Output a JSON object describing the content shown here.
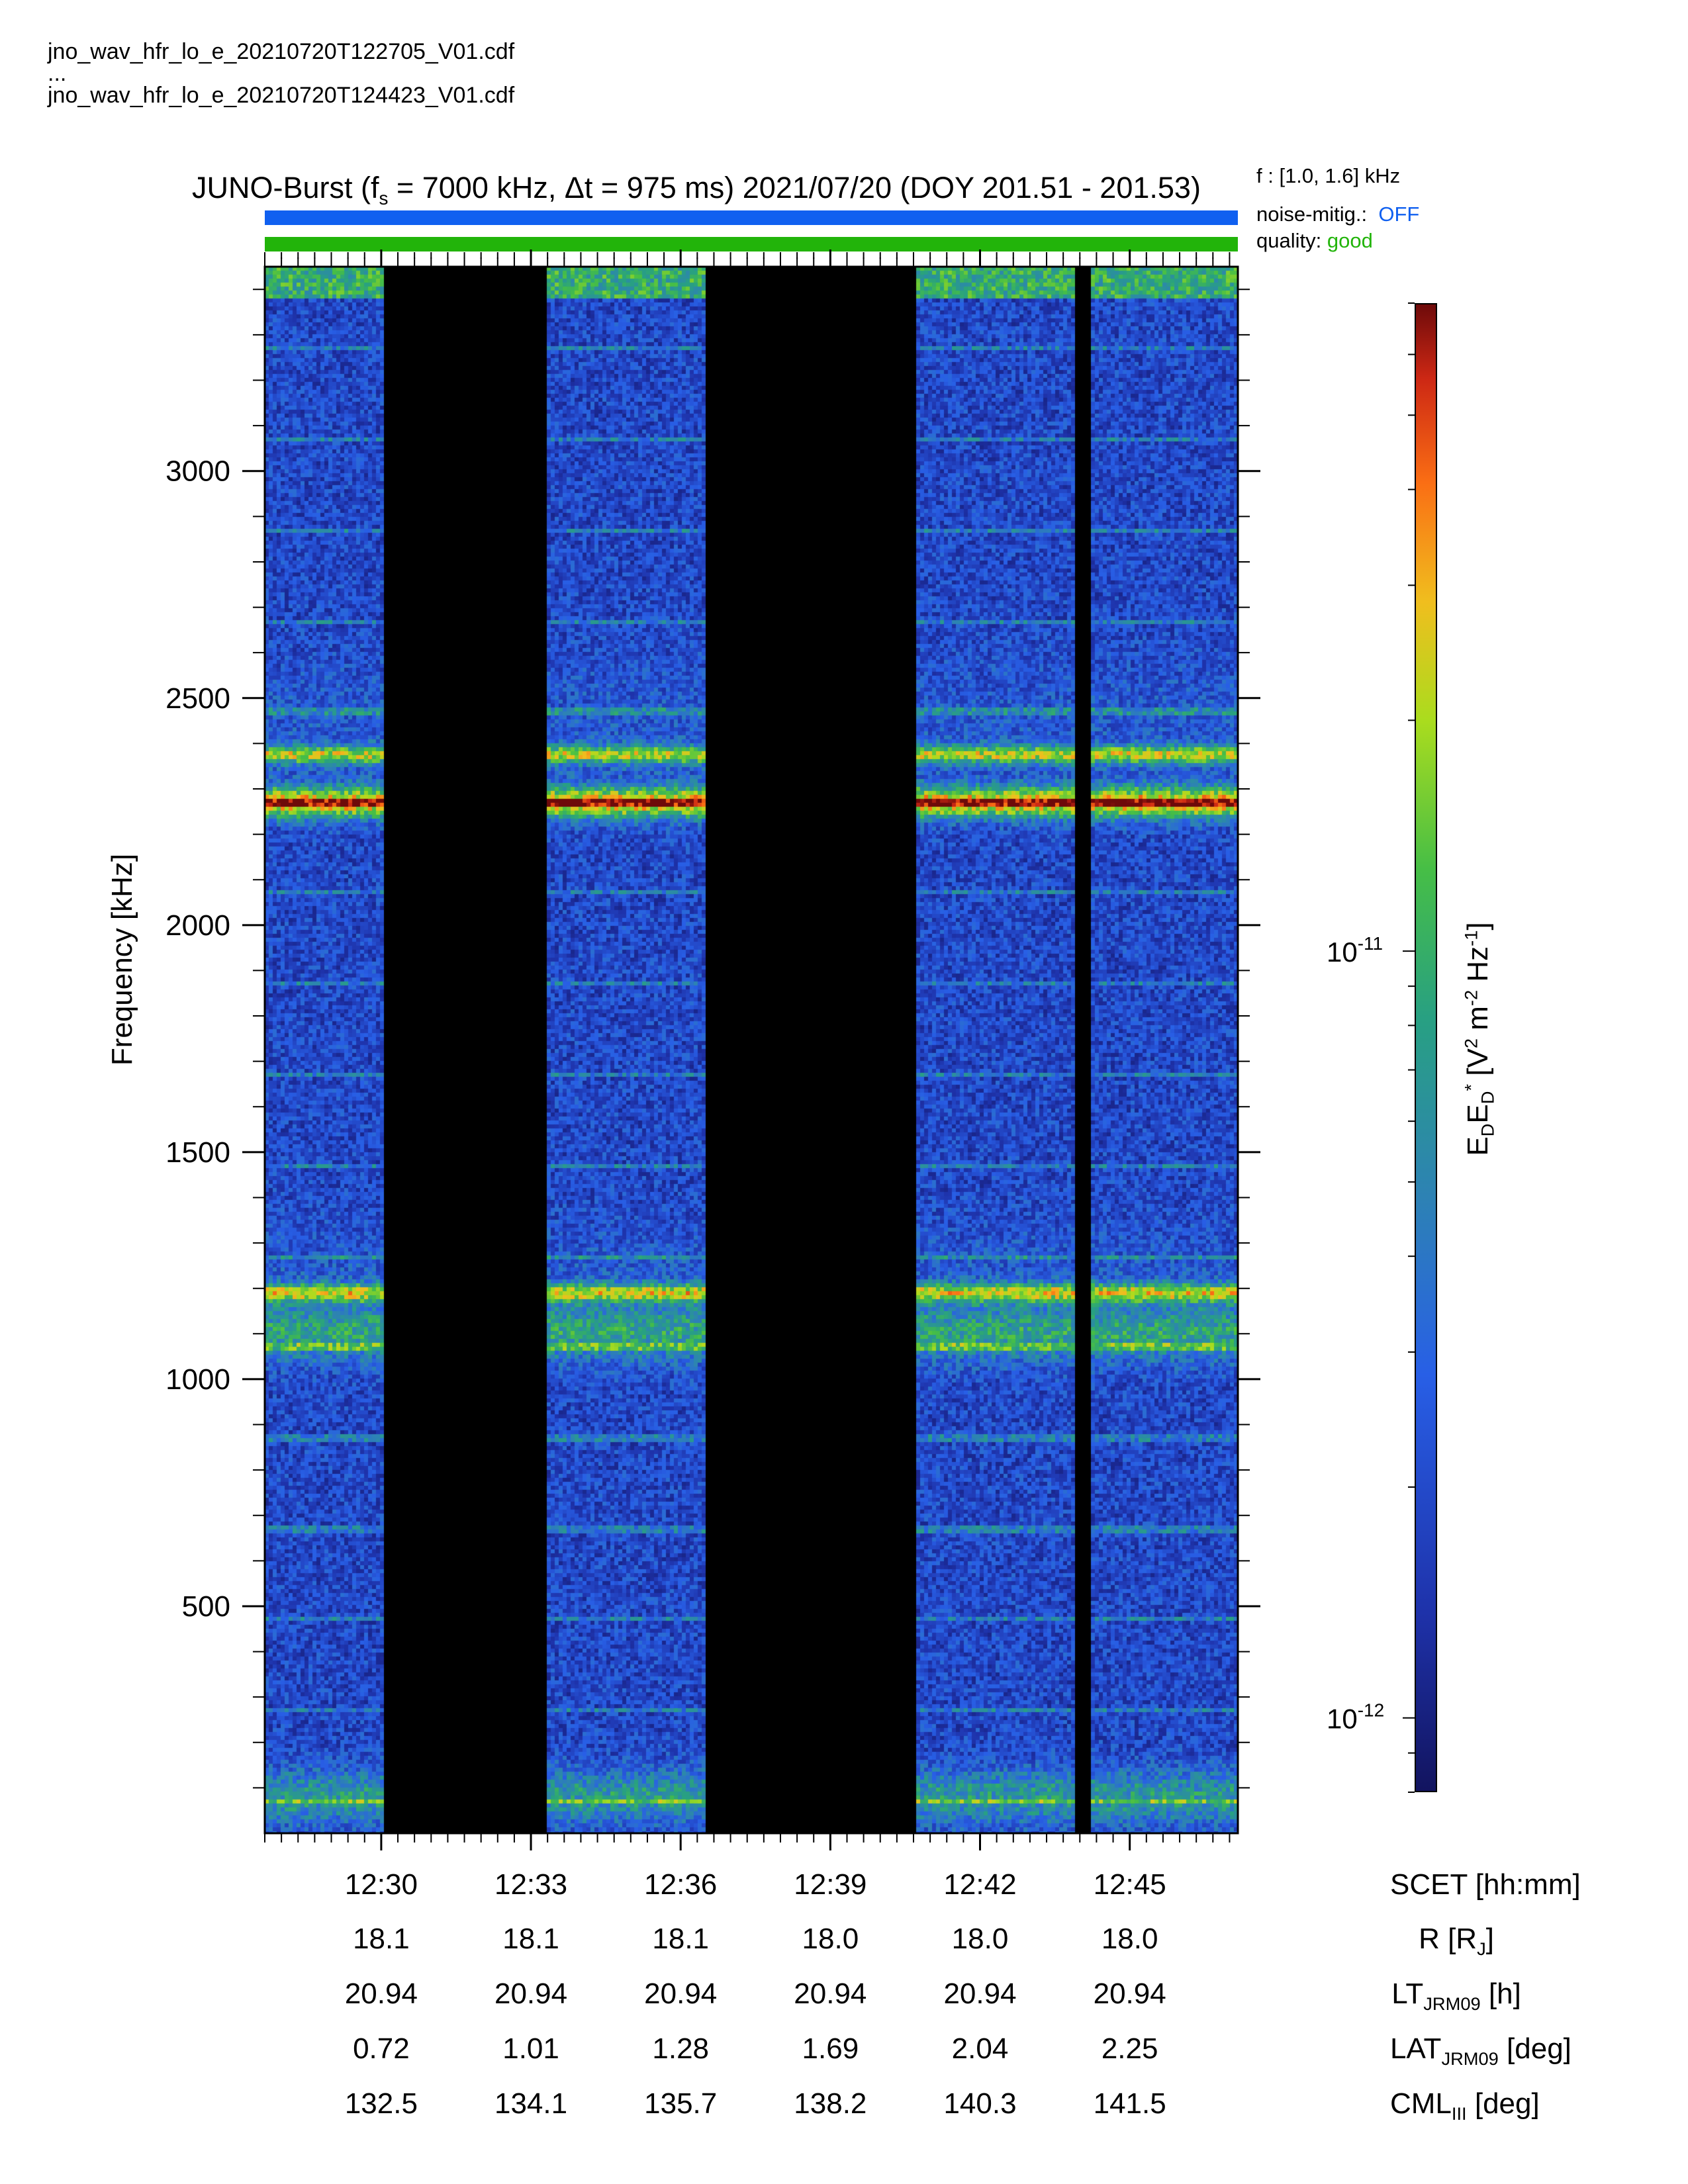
{
  "header": {
    "file_first": "jno_wav_hfr_lo_e_20210720T122705_V01.cdf",
    "file_ellipsis": "...",
    "file_last": "jno_wav_hfr_lo_e_20210720T124423_V01.cdf"
  },
  "title": {
    "part1": "JUNO-Burst (f",
    "sub": "s",
    "part2": " = 7000 kHz, Δt = 975 ms)  2021/07/20 (DOY 201.51 - 201.53)"
  },
  "meta": {
    "frange": "f : [1.0, 1.6] kHz",
    "noise_label": "noise-mitig.:",
    "noise_value": "OFF",
    "noise_color": "#1060f0",
    "quality_label": "quality:",
    "quality_value": "good",
    "quality_color": "#22b40a"
  },
  "chart_data": {
    "type": "heatmap",
    "title": "JUNO-Burst (fs = 7000 kHz, Δt = 975 ms)  2021/07/20 (DOY 201.51 - 201.53)",
    "xlabel": "SCET [hh:mm]",
    "ylabel": "Frequency [kHz]",
    "ylim": [
      0,
      3450
    ],
    "yticks": [
      500,
      1000,
      1500,
      2000,
      2500,
      3000
    ],
    "xlim": [
      "12:27:40",
      "12:47:10"
    ],
    "xticks": [
      "12:30",
      "12:33",
      "12:36",
      "12:39",
      "12:42",
      "12:45"
    ],
    "colorbar": {
      "label": "EDED* [V² m⁻² Hz⁻¹]",
      "scale": "log",
      "range": [
        8e-13,
        7e-11
      ],
      "ticks": [
        "10^-12",
        "10^-11"
      ]
    },
    "data_gaps": [
      {
        "start": "12:30:05",
        "end": "12:33:20"
      },
      {
        "start": "12:36:30",
        "end": "12:40:45"
      },
      {
        "start": "12:43:55",
        "end": "12:44:15"
      }
    ],
    "emission_bands_khz": [
      {
        "center": 2270,
        "level": "peak"
      },
      {
        "center": 2375,
        "level": "high"
      },
      {
        "center": 1190,
        "level": "high"
      },
      {
        "center": 1100,
        "level": "medium"
      },
      {
        "center": 80,
        "level": "medium"
      }
    ],
    "ephemeris": {
      "rows": [
        {
          "label_main": "SCET [hh:mm]",
          "label_sub": "",
          "label_tail": ""
        },
        {
          "label_main": "R [R",
          "label_sub": "J",
          "label_tail": "]"
        },
        {
          "label_main": "LT",
          "label_sub": "JRM09",
          "label_tail": " [h]"
        },
        {
          "label_main": "LAT",
          "label_sub": "JRM09",
          "label_tail": " [deg]"
        },
        {
          "label_main": "CML",
          "label_sub": "III",
          "label_tail": " [deg]"
        }
      ],
      "values": [
        [
          "12:30",
          "12:33",
          "12:36",
          "12:39",
          "12:42",
          "12:45"
        ],
        [
          "18.1",
          "18.1",
          "18.1",
          "18.0",
          "18.0",
          "18.0"
        ],
        [
          "20.94",
          "20.94",
          "20.94",
          "20.94",
          "20.94",
          "20.94"
        ],
        [
          "0.72",
          "1.01",
          "1.28",
          "1.69",
          "2.04",
          "2.25"
        ],
        [
          "132.5",
          "134.1",
          "135.7",
          "138.2",
          "140.3",
          "141.5"
        ]
      ]
    }
  }
}
